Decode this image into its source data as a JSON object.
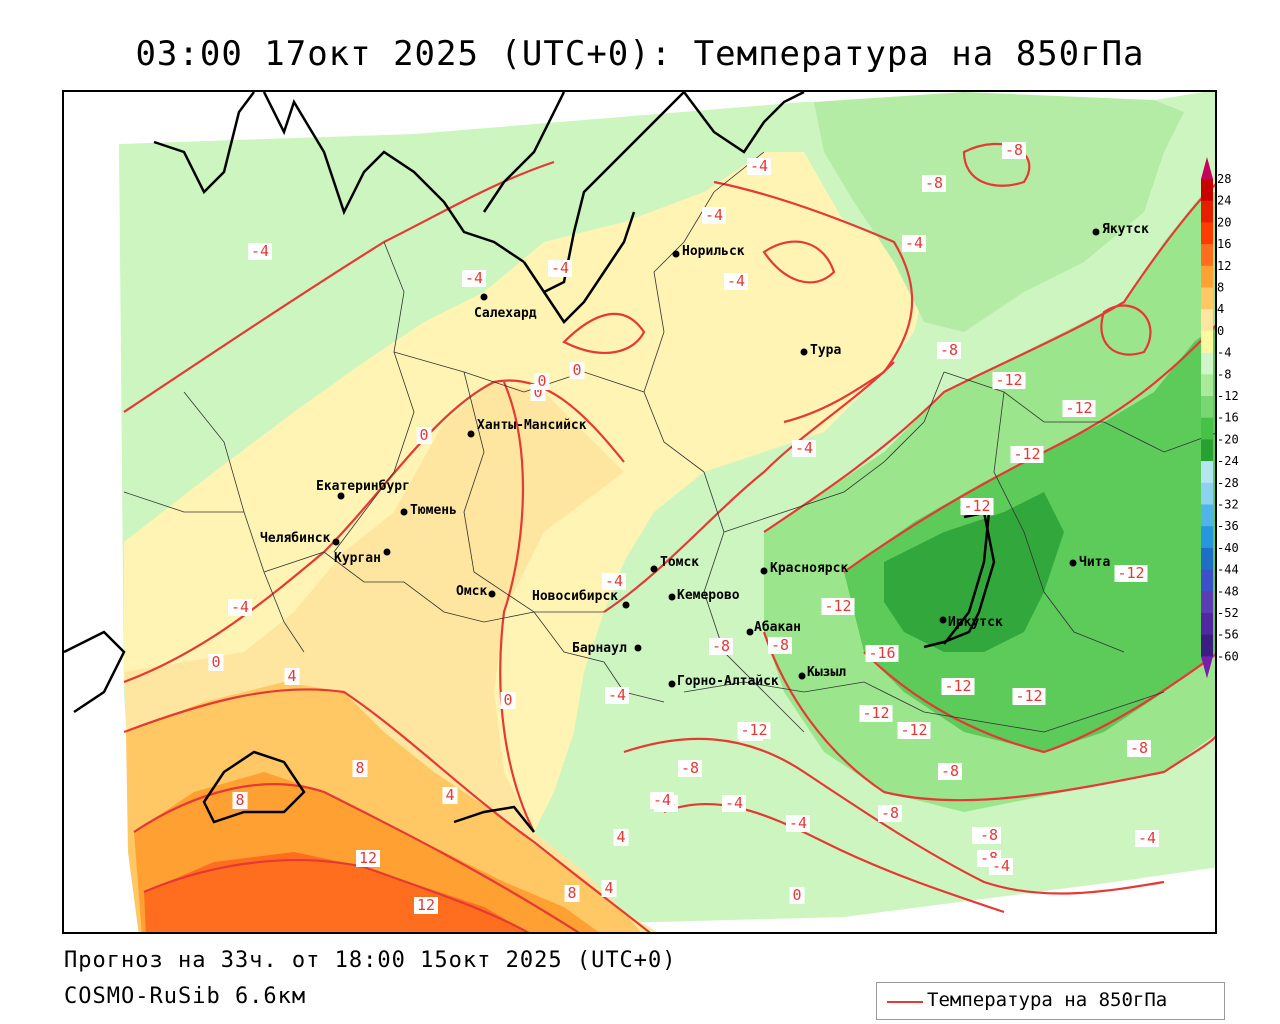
{
  "title": "03:00 17окт 2025 (UTC+0): Температура на 850гПа",
  "forecast_line": "Прогноз на 33ч. от 18:00 15окт 2025 (UTC+0)",
  "model_line": "COSMO-RuSib 6.6км",
  "legend_label": "Температура на 850гПа",
  "colors": {
    "isoline": "#e53935",
    "ocean": "#ffffff",
    "boundary": "#000000"
  },
  "colorbar": {
    "ticks": [
      "28",
      "24",
      "20",
      "16",
      "12",
      "8",
      "4",
      "0",
      "-4",
      "-8",
      "-12",
      "-16",
      "-20",
      "-24",
      "-28",
      "-32",
      "-36",
      "-40",
      "-44",
      "-48",
      "-52",
      "-56",
      "-60"
    ],
    "colors": [
      "#c8005a",
      "#c80000",
      "#e81e00",
      "#ff3c00",
      "#ff6e1e",
      "#ffa032",
      "#ffc864",
      "#ffe6a0",
      "#fffaa0",
      "#d2f5c8",
      "#aaeb9b",
      "#78d774",
      "#46c346",
      "#28a032",
      "#b4e6f0",
      "#8cd2f0",
      "#50b4e6",
      "#2896dc",
      "#1e6ec8",
      "#3c50c8",
      "#5a3cb4",
      "#5028a0",
      "#3c1e82",
      "#781eaa"
    ]
  },
  "cities": [
    {
      "name": "Салехард"
    },
    {
      "name": "Норильск"
    },
    {
      "name": "Тура"
    },
    {
      "name": "Якутск"
    },
    {
      "name": "Ханты-Мансийск"
    },
    {
      "name": "Екатеринбург"
    },
    {
      "name": "Тюмень"
    },
    {
      "name": "Челябинск"
    },
    {
      "name": "Курган"
    },
    {
      "name": "Омск"
    },
    {
      "name": "Новосибирск"
    },
    {
      "name": "Томск"
    },
    {
      "name": "Кемерово"
    },
    {
      "name": "Красноярск"
    },
    {
      "name": "Абакан"
    },
    {
      "name": "Барнаул"
    },
    {
      "name": "Горно-Алтайск"
    },
    {
      "name": "Кызыл"
    },
    {
      "name": "Иркутск"
    },
    {
      "name": "Чита"
    }
  ],
  "isoline_labels": [
    "-4",
    "-4",
    "-4",
    "-4",
    "-4",
    "-8",
    "-4",
    "-4",
    "-8",
    "-8",
    "-12",
    "-12",
    "-12",
    "-12",
    "-12",
    "0",
    "0",
    "0",
    "-4",
    "-4",
    "-8",
    "-8",
    "-12",
    "-16",
    "-12",
    "-12",
    "-12",
    "-12",
    "-8",
    "-4",
    "0",
    "4",
    "0",
    "-4",
    "-4",
    "-8",
    "-12",
    "-8",
    "-8",
    "-8",
    "-4",
    "-4",
    "-8",
    "-8",
    "0",
    "4",
    "8",
    "8",
    "12",
    "12",
    "8",
    "4",
    "4",
    "0",
    "-4",
    "-4",
    "-8",
    "-4"
  ]
}
